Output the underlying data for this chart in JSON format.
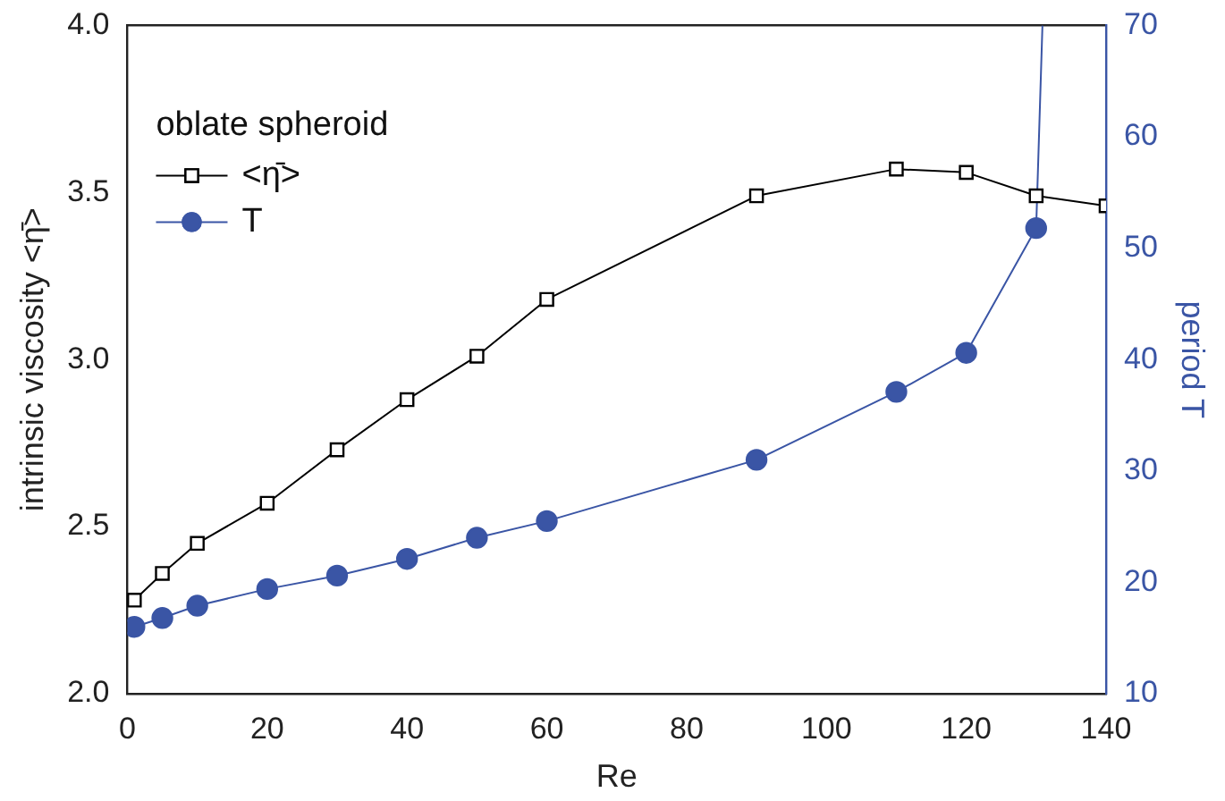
{
  "chart_data": {
    "type": "line",
    "xlabel": "Re",
    "ylabel": "intrinsic viscosity <η̄>",
    "y2label": "period T",
    "legend_title": "oblate spheroid",
    "legend": "top left",
    "grid": false,
    "xlim": [
      0,
      140
    ],
    "xticks": [
      0,
      20,
      40,
      60,
      80,
      100,
      120,
      140
    ],
    "ylim": [
      2,
      4
    ],
    "yticks": [
      {
        "value": 2,
        "label": "2.0"
      },
      {
        "value": 2.5,
        "label": "2.5"
      },
      {
        "value": 3,
        "label": "3.0"
      },
      {
        "value": 3.5,
        "label": "3.5"
      },
      {
        "value": 4,
        "label": "4.0"
      }
    ],
    "y2lim": [
      10,
      70
    ],
    "y2ticks": [
      10,
      20,
      30,
      40,
      50,
      60,
      70
    ],
    "series": [
      {
        "name": "<η̄>",
        "color": "#000000",
        "marker": "square",
        "x": [
          1,
          5,
          10,
          20,
          30,
          40,
          50,
          60,
          90,
          110,
          120,
          130,
          140
        ],
        "values": [
          2.28,
          2.36,
          2.45,
          2.57,
          2.73,
          2.88,
          3.01,
          3.18,
          3.49,
          3.57,
          3.56,
          3.49,
          3.46
        ]
      },
      {
        "name": "T",
        "color": "#3a55a5",
        "marker": "circle",
        "axis": "y2",
        "x": [
          1,
          5,
          10,
          20,
          30,
          40,
          50,
          60,
          90,
          110,
          120,
          130,
          130.9
        ],
        "values": [
          16.0,
          16.8,
          17.9,
          19.4,
          20.6,
          22.1,
          24.0,
          25.5,
          31.0,
          37.1,
          40.6,
          51.8,
          70
        ]
      }
    ]
  }
}
